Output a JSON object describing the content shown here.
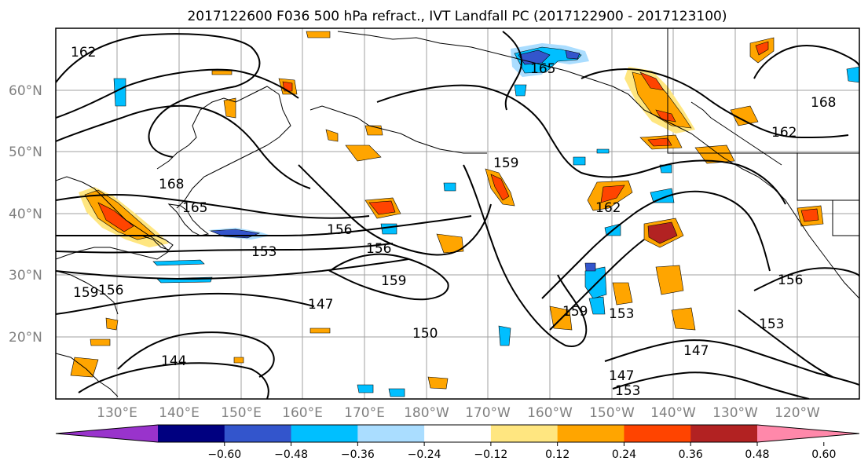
{
  "title": "2017122600 F036 500 hPa refract., IVT Landfall PC (2017122900 - 2017123100)",
  "lat_labels": [
    "60°N",
    "50°N",
    "40°N",
    "30°N",
    "20°N"
  ],
  "lon_labels": [
    "130°E",
    "140°E",
    "150°E",
    "160°E",
    "170°E",
    "180°W",
    "170°W",
    "160°W",
    "150°W",
    "140°W",
    "130°W",
    "120°W"
  ],
  "colorbar": {
    "ticks": [
      "−0.60",
      "−0.48",
      "−0.36",
      "−0.24",
      "−0.12",
      "0.12",
      "0.24",
      "0.36",
      "0.48",
      "0.60"
    ],
    "colors": [
      "#9933cc",
      "#000080",
      "#3355cc",
      "#00bfff",
      "#aaddff",
      "#ffffff",
      "#ffe680",
      "#ffa500",
      "#ff4400",
      "#b22222",
      "#ff88aa"
    ]
  },
  "contour_labels": [
    "162",
    "165",
    "168",
    "165",
    "156",
    "153",
    "156",
    "159",
    "147",
    "150",
    "159",
    "162",
    "159",
    "153",
    "147",
    "153",
    "162",
    "168",
    "156",
    "153",
    "147",
    "144",
    "159",
    "156"
  ],
  "colors": {
    "warm": "#ffa500",
    "hot": "#ff4400",
    "cool": "#00bfff",
    "light_warm": "#ffe680",
    "light_cool": "#aaddff",
    "deep": "#3355cc"
  }
}
